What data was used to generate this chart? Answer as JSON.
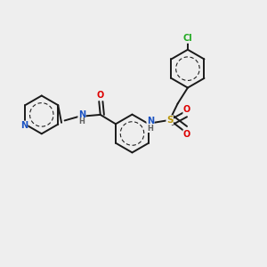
{
  "bg_color": "#eeeeee",
  "bond_color": "#1a1a1a",
  "bond_lw": 1.4,
  "atom_colors": {
    "N": "#1a52c2",
    "O": "#dd0000",
    "S": "#b8950a",
    "Cl": "#22aa22",
    "H": "#606060"
  },
  "font_size": 7.0,
  "font_size_h": 6.0
}
